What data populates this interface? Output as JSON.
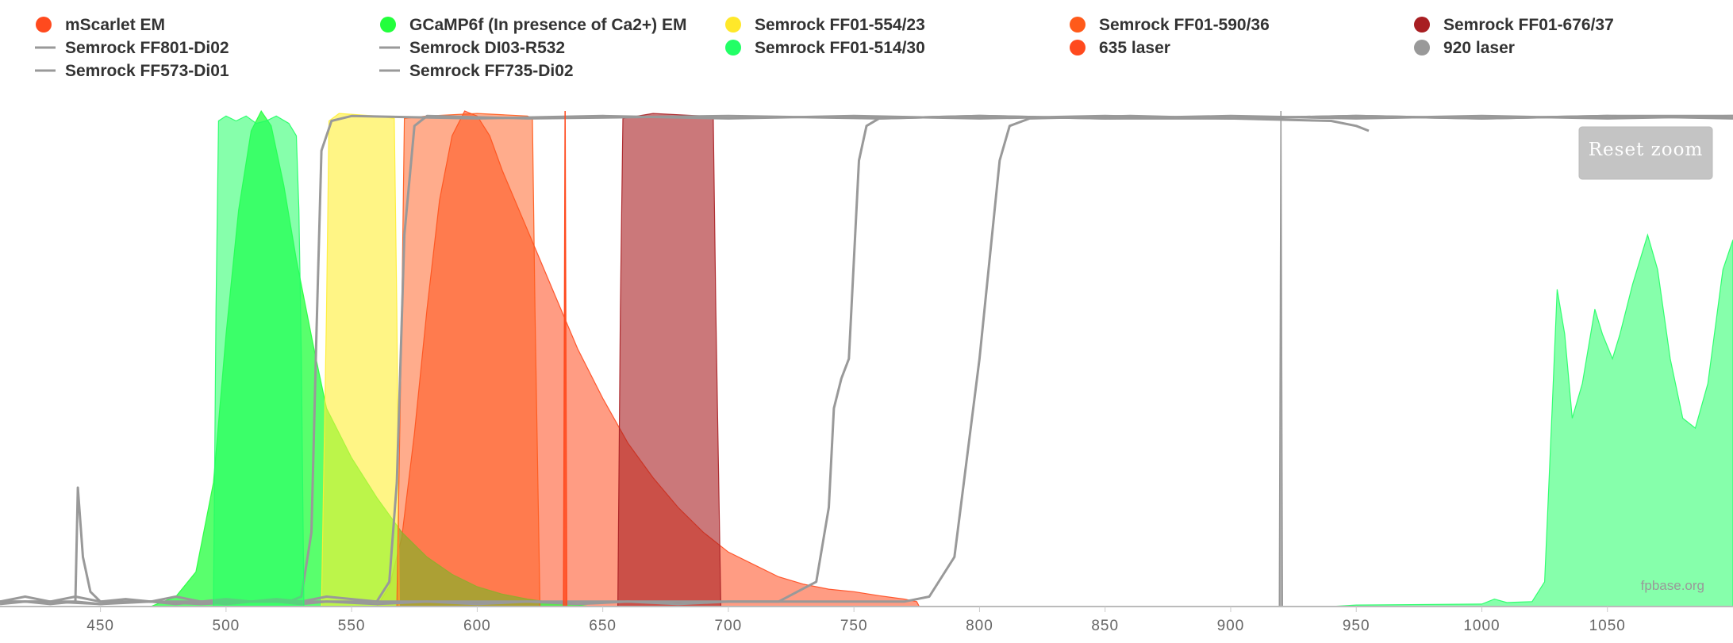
{
  "chart_data": {
    "type": "area",
    "xlim": [
      410,
      1100
    ],
    "ylim": [
      0,
      1
    ],
    "x_ticks": [
      450,
      500,
      550,
      600,
      650,
      700,
      750,
      800,
      850,
      900,
      950,
      1000,
      1050
    ],
    "grid": false,
    "legend_position": "top",
    "credit": "fpbase.org",
    "reset_zoom_label": "Reset zoom",
    "series": [
      {
        "name": "mScarlet EM",
        "kind": "area",
        "color": "#ff4a1e",
        "opacity": 0.55,
        "points": [
          [
            560,
            0
          ],
          [
            565,
            0.04
          ],
          [
            570,
            0.14
          ],
          [
            575,
            0.35
          ],
          [
            580,
            0.6
          ],
          [
            585,
            0.82
          ],
          [
            590,
            0.95
          ],
          [
            595,
            1.0
          ],
          [
            600,
            0.99
          ],
          [
            605,
            0.95
          ],
          [
            610,
            0.88
          ],
          [
            620,
            0.76
          ],
          [
            630,
            0.64
          ],
          [
            640,
            0.52
          ],
          [
            650,
            0.42
          ],
          [
            660,
            0.33
          ],
          [
            670,
            0.26
          ],
          [
            680,
            0.2
          ],
          [
            690,
            0.15
          ],
          [
            700,
            0.11
          ],
          [
            710,
            0.085
          ],
          [
            720,
            0.06
          ],
          [
            730,
            0.045
          ],
          [
            740,
            0.035
          ],
          [
            750,
            0.03
          ],
          [
            760,
            0.022
          ],
          [
            770,
            0.015
          ],
          [
            775,
            0.01
          ],
          [
            776,
            0
          ]
        ]
      },
      {
        "name": "GCaMP6f (In presence of Ca2+) EM",
        "kind": "area",
        "color": "#22ff3c",
        "opacity": 0.75,
        "points": [
          [
            470,
            0
          ],
          [
            480,
            0.02
          ],
          [
            488,
            0.07
          ],
          [
            495,
            0.25
          ],
          [
            500,
            0.55
          ],
          [
            505,
            0.8
          ],
          [
            510,
            0.96
          ],
          [
            514,
            1.0
          ],
          [
            518,
            0.97
          ],
          [
            523,
            0.85
          ],
          [
            528,
            0.7
          ],
          [
            535,
            0.52
          ],
          [
            540,
            0.4
          ],
          [
            550,
            0.3
          ],
          [
            560,
            0.22
          ],
          [
            570,
            0.15
          ],
          [
            580,
            0.1
          ],
          [
            590,
            0.065
          ],
          [
            600,
            0.04
          ],
          [
            610,
            0.025
          ],
          [
            620,
            0.015
          ],
          [
            630,
            0.008
          ],
          [
            640,
            0.003
          ],
          [
            645,
            0
          ]
        ]
      },
      {
        "name": "Semrock FF01-554/23",
        "kind": "area",
        "color": "#ffee33",
        "opacity": 0.6,
        "points": [
          [
            538,
            0
          ],
          [
            540,
            0.6
          ],
          [
            541,
            0.98
          ],
          [
            545,
            0.995
          ],
          [
            560,
            0.99
          ],
          [
            567,
            0.985
          ],
          [
            568,
            0.6
          ],
          [
            569,
            0
          ]
        ]
      },
      {
        "name": "Semrock FF01-590/36",
        "kind": "area",
        "color": "#ff5a1a",
        "opacity": 0.5,
        "points": [
          [
            568,
            0
          ],
          [
            570,
            0.6
          ],
          [
            571,
            0.985
          ],
          [
            580,
            0.99
          ],
          [
            600,
            0.995
          ],
          [
            620,
            0.99
          ],
          [
            622,
            0.985
          ],
          [
            623,
            0.6
          ],
          [
            625,
            0
          ]
        ]
      },
      {
        "name": "Semrock FF01-676/37",
        "kind": "area",
        "color": "#a81e22",
        "opacity": 0.6,
        "points": [
          [
            656,
            0
          ],
          [
            657,
            0.6
          ],
          [
            658,
            0.985
          ],
          [
            670,
            0.995
          ],
          [
            690,
            0.99
          ],
          [
            694,
            0.985
          ],
          [
            695,
            0.6
          ],
          [
            697,
            0
          ]
        ]
      },
      {
        "name": "Semrock FF801-Di02",
        "kind": "line",
        "color": "#999999",
        "points": [
          [
            410,
            0.005
          ],
          [
            420,
            0.01
          ],
          [
            430,
            0.005
          ],
          [
            440,
            0.01
          ],
          [
            450,
            0.005
          ],
          [
            460,
            0.01
          ],
          [
            470,
            0.01
          ],
          [
            480,
            0.005
          ],
          [
            490,
            0.01
          ],
          [
            500,
            0.005
          ],
          [
            510,
            0.01
          ],
          [
            520,
            0.01
          ],
          [
            530,
            0.005
          ],
          [
            540,
            0.01
          ],
          [
            560,
            0.005
          ],
          [
            580,
            0.01
          ],
          [
            600,
            0.005
          ],
          [
            620,
            0.01
          ],
          [
            640,
            0.005
          ],
          [
            660,
            0.01
          ],
          [
            680,
            0.005
          ],
          [
            700,
            0.01
          ],
          [
            720,
            0.01
          ],
          [
            735,
            0.05
          ],
          [
            740,
            0.2
          ],
          [
            742,
            0.4
          ],
          [
            745,
            0.46
          ],
          [
            748,
            0.5
          ],
          [
            752,
            0.9
          ],
          [
            755,
            0.97
          ],
          [
            760,
            0.985
          ],
          [
            800,
            0.99
          ],
          [
            850,
            0.985
          ],
          [
            900,
            0.99
          ],
          [
            950,
            0.985
          ],
          [
            1000,
            0.99
          ],
          [
            1050,
            0.985
          ],
          [
            1100,
            0.99
          ]
        ]
      },
      {
        "name": "Semrock FF573-Di01",
        "kind": "line",
        "color": "#999999",
        "points": [
          [
            410,
            0.01
          ],
          [
            420,
            0.02
          ],
          [
            430,
            0.01
          ],
          [
            440,
            0.02
          ],
          [
            450,
            0.01
          ],
          [
            460,
            0.015
          ],
          [
            470,
            0.01
          ],
          [
            480,
            0.02
          ],
          [
            490,
            0.01
          ],
          [
            500,
            0.015
          ],
          [
            510,
            0.01
          ],
          [
            520,
            0.015
          ],
          [
            530,
            0.01
          ],
          [
            540,
            0.02
          ],
          [
            560,
            0.01
          ],
          [
            565,
            0.05
          ],
          [
            568,
            0.25
          ],
          [
            571,
            0.75
          ],
          [
            575,
            0.97
          ],
          [
            580,
            0.99
          ],
          [
            620,
            0.985
          ],
          [
            700,
            0.99
          ],
          [
            760,
            0.985
          ],
          [
            800,
            0.99
          ],
          [
            850,
            0.985
          ],
          [
            900,
            0.985
          ],
          [
            940,
            0.98
          ],
          [
            950,
            0.97
          ],
          [
            955,
            0.96
          ]
        ]
      },
      {
        "name": "Semrock DI03-R532",
        "kind": "line",
        "color": "#999999",
        "points": [
          [
            410,
            0.01
          ],
          [
            430,
            0.01
          ],
          [
            450,
            0.005
          ],
          [
            470,
            0.01
          ],
          [
            490,
            0.005
          ],
          [
            510,
            0.01
          ],
          [
            525,
            0.01
          ],
          [
            530,
            0.02
          ],
          [
            534,
            0.15
          ],
          [
            536,
            0.55
          ],
          [
            538,
            0.92
          ],
          [
            542,
            0.98
          ],
          [
            550,
            0.99
          ],
          [
            600,
            0.985
          ],
          [
            650,
            0.99
          ],
          [
            700,
            0.985
          ],
          [
            750,
            0.99
          ],
          [
            800,
            0.985
          ],
          [
            850,
            0.99
          ],
          [
            900,
            0.985
          ],
          [
            950,
            0.99
          ],
          [
            1000,
            0.985
          ],
          [
            1050,
            0.99
          ],
          [
            1100,
            0.99
          ]
        ]
      },
      {
        "name": "Semrock FF735-Di02",
        "kind": "line",
        "color": "#999999",
        "points": [
          [
            410,
            0.01
          ],
          [
            440,
            0.01
          ],
          [
            441,
            0.24
          ],
          [
            443,
            0.1
          ],
          [
            446,
            0.03
          ],
          [
            450,
            0.01
          ],
          [
            480,
            0.01
          ],
          [
            520,
            0.01
          ],
          [
            560,
            0.01
          ],
          [
            600,
            0.01
          ],
          [
            650,
            0.01
          ],
          [
            700,
            0.01
          ],
          [
            750,
            0.01
          ],
          [
            770,
            0.01
          ],
          [
            780,
            0.02
          ],
          [
            790,
            0.1
          ],
          [
            800,
            0.5
          ],
          [
            808,
            0.9
          ],
          [
            812,
            0.97
          ],
          [
            820,
            0.985
          ],
          [
            860,
            0.99
          ],
          [
            900,
            0.985
          ],
          [
            950,
            0.99
          ],
          [
            1000,
            0.985
          ],
          [
            1050,
            0.99
          ],
          [
            1100,
            0.985
          ]
        ]
      },
      {
        "name": "635 laser",
        "kind": "spike",
        "color": "#ff4a1e",
        "x": 635,
        "peak": 1.0
      },
      {
        "name": "920 laser",
        "kind": "spike",
        "color": "#999999",
        "x": 920,
        "peak": 1.0
      },
      {
        "name": "Semrock FF01-514/30",
        "kind": "area",
        "color": "#22ff66",
        "opacity": 0.55,
        "points": [
          [
            495,
            0
          ],
          [
            496,
            0.6
          ],
          [
            497,
            0.98
          ],
          [
            500,
            0.99
          ],
          [
            504,
            0.98
          ],
          [
            508,
            0.99
          ],
          [
            512,
            0.975
          ],
          [
            516,
            0.98
          ],
          [
            520,
            0.99
          ],
          [
            525,
            0.975
          ],
          [
            528,
            0.95
          ],
          [
            529,
            0.8
          ],
          [
            530,
            0.5
          ],
          [
            531,
            0
          ],
          [
            940,
            0
          ],
          [
            950,
            0.003
          ],
          [
            1000,
            0.005
          ],
          [
            1005,
            0.015
          ],
          [
            1010,
            0.008
          ],
          [
            1020,
            0.01
          ],
          [
            1025,
            0.05
          ],
          [
            1028,
            0.4
          ],
          [
            1030,
            0.64
          ],
          [
            1033,
            0.55
          ],
          [
            1036,
            0.38
          ],
          [
            1040,
            0.45
          ],
          [
            1045,
            0.6
          ],
          [
            1048,
            0.55
          ],
          [
            1052,
            0.5
          ],
          [
            1055,
            0.55
          ],
          [
            1060,
            0.65
          ],
          [
            1066,
            0.75
          ],
          [
            1070,
            0.68
          ],
          [
            1075,
            0.5
          ],
          [
            1080,
            0.38
          ],
          [
            1085,
            0.36
          ],
          [
            1090,
            0.45
          ],
          [
            1096,
            0.68
          ],
          [
            1100,
            0.74
          ],
          [
            1100,
            0
          ]
        ]
      }
    ],
    "legend": [
      {
        "label": "mScarlet EM",
        "marker": "dot",
        "color": "#ff4a1e"
      },
      {
        "label": "GCaMP6f (In presence of Ca2+) EM",
        "marker": "dot",
        "color": "#22ff3c"
      },
      {
        "label": "Semrock FF01-554/23",
        "marker": "dot",
        "color": "#ffe82a"
      },
      {
        "label": "Semrock FF01-590/36",
        "marker": "dot",
        "color": "#ff5a1a"
      },
      {
        "label": "Semrock FF01-676/37",
        "marker": "dot",
        "color": "#a81e22"
      },
      {
        "label": "Semrock FF801-Di02",
        "marker": "line",
        "color": "#999999"
      },
      {
        "label": "Semrock DI03-R532",
        "marker": "line",
        "color": "#999999"
      },
      {
        "label": "Semrock FF01-514/30",
        "marker": "dot",
        "color": "#22ff66"
      },
      {
        "label": "635 laser",
        "marker": "dot",
        "color": "#ff4a1e"
      },
      {
        "label": "920 laser",
        "marker": "dot",
        "color": "#999999"
      },
      {
        "label": "Semrock FF573-Di01",
        "marker": "line",
        "color": "#999999"
      },
      {
        "label": "Semrock FF735-Di02",
        "marker": "line",
        "color": "#999999"
      }
    ]
  }
}
